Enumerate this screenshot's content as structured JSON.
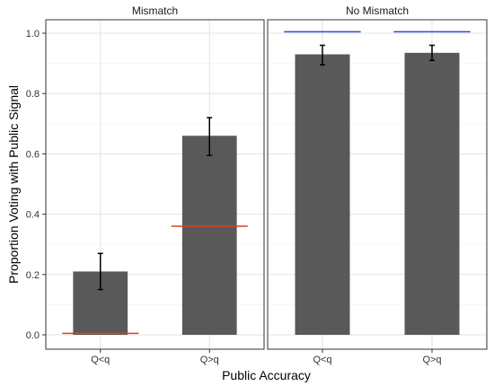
{
  "chart_data": {
    "type": "bar",
    "xlabel": "Public Accuracy",
    "ylabel": "Proportion Voting with Public Signal",
    "ylim": [
      0,
      1.0
    ],
    "yticks": [
      "0.0",
      "0.2",
      "0.4",
      "0.6",
      "0.8",
      "1.0"
    ],
    "grid": true,
    "bar_color": "#595959",
    "facets": [
      {
        "label": "Mismatch",
        "categories": [
          "Q<q",
          "Q>q"
        ],
        "values": [
          0.21,
          0.66
        ],
        "error_low": [
          0.15,
          0.595
        ],
        "error_high": [
          0.27,
          0.72
        ],
        "reference": [
          0.005,
          0.36
        ],
        "reference_color": "#e0401a"
      },
      {
        "label": "No Mismatch",
        "categories": [
          "Q<q",
          "Q>q"
        ],
        "values": [
          0.93,
          0.935
        ],
        "error_low": [
          0.895,
          0.91
        ],
        "error_high": [
          0.96,
          0.96
        ],
        "reference": [
          1.005,
          1.005
        ],
        "reference_color": "#2a4fd6"
      }
    ]
  }
}
